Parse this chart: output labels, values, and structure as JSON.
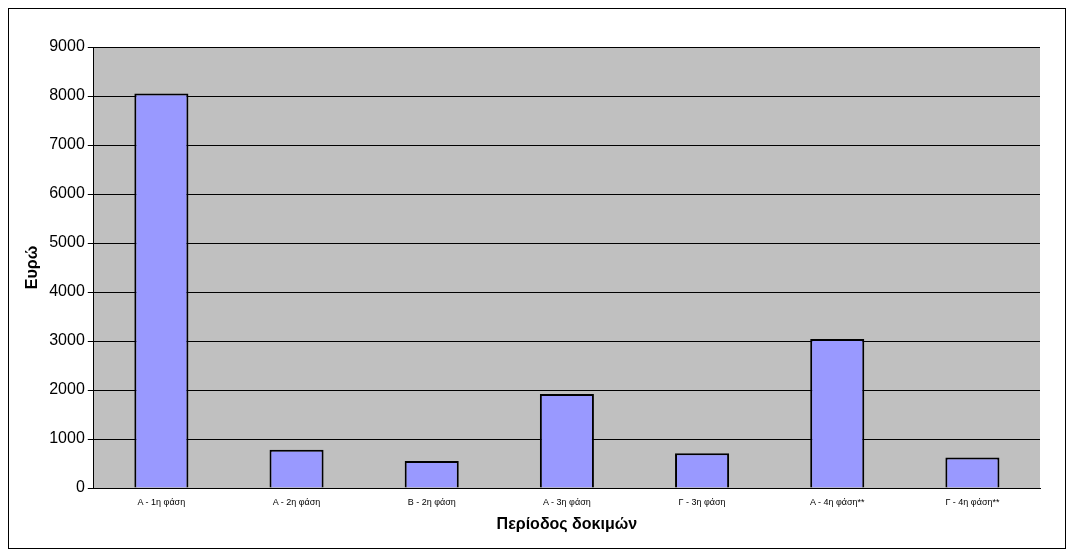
{
  "chart_data": {
    "type": "bar",
    "xlabel": "Περίοδος δοκιμών",
    "ylabel": "Ευρώ",
    "categories": [
      "Α - 1η φάση",
      "Α - 2η φάση",
      "Β - 2η φάση",
      "Α - 3η φάση",
      "Γ - 3η φάση",
      "Α - 4η φάση**",
      "Γ - 4η φάση**"
    ],
    "values": [
      8050,
      780,
      550,
      1920,
      710,
      3040,
      620
    ],
    "color": "#9999ff",
    "ylim": [
      0,
      9000
    ],
    "yticks": [
      0,
      1000,
      2000,
      3000,
      4000,
      5000,
      6000,
      7000,
      8000,
      9000
    ],
    "grid": "y"
  }
}
